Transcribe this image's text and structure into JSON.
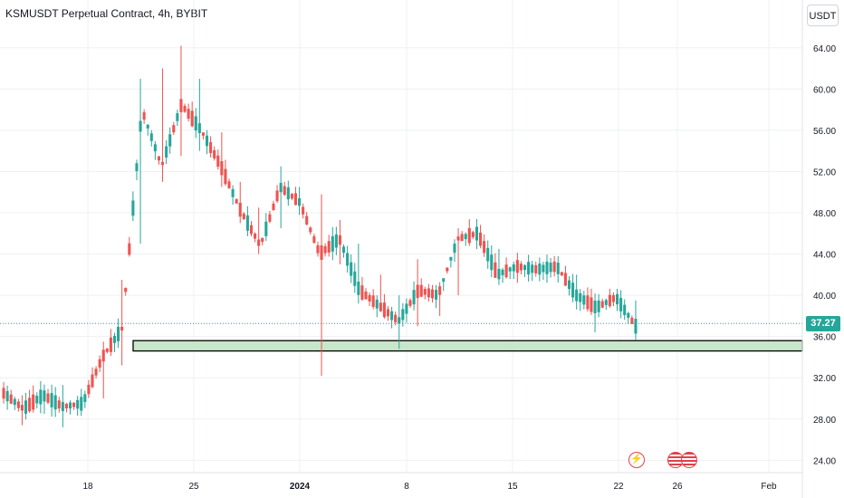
{
  "header": {
    "title": "KSMUSDT Perpetual Contract, 4h, BYBIT"
  },
  "price_scale": {
    "currency": "USDT",
    "last_price_label": "37.27"
  },
  "colors": {
    "up": "#26a69a",
    "down": "#ef5350",
    "zone_fill": "#c8e6c9",
    "zone_border": "#000000",
    "grid": "#eef0f3",
    "last_price_line": "#26a69a"
  },
  "events": [
    {
      "icon": "lightning-icon",
      "x_label": "22"
    },
    {
      "icon": "us-flag-icon",
      "x_label": "26"
    },
    {
      "icon": "us-flag-icon",
      "x_label": "26"
    }
  ],
  "chart_data": {
    "type": "candlestick",
    "y_ticks": [
      "64.00",
      "60.00",
      "56.00",
      "52.00",
      "48.00",
      "44.00",
      "40.00",
      "36.00",
      "32.00",
      "28.00",
      "24.00"
    ],
    "x_ticks": [
      "18",
      "25",
      "2024",
      "8",
      "15",
      "22",
      "26",
      "Feb"
    ],
    "last_price": 37.27,
    "ylim": [
      22.8,
      66
    ],
    "support_zone": {
      "from": 34.6,
      "to": 35.6
    },
    "grid": true,
    "series": [
      {
        "date": "2023-12-12",
        "close": 30.5,
        "low": 29.5,
        "high": 31.2
      },
      {
        "date": "2023-12-14",
        "close": 29.0,
        "low": 27.4,
        "high": 30.3
      },
      {
        "date": "2023-12-16",
        "close": 30.3,
        "low": 28.5,
        "high": 31.0
      },
      {
        "date": "2023-12-18",
        "close": 29.2,
        "low": 27.2,
        "high": 31.3
      },
      {
        "date": "2023-12-20",
        "close": 29.5,
        "low": 28.8,
        "high": 30.5
      },
      {
        "date": "2023-12-22",
        "close": 34.0,
        "low": 30.0,
        "high": 35.5
      },
      {
        "date": "2023-12-24",
        "close": 36.8,
        "low": 33.2,
        "high": 41.5
      },
      {
        "date": "2023-12-25",
        "close": 58.0,
        "low": 45.0,
        "high": 61.0
      },
      {
        "date": "2023-12-26",
        "close": 52.5,
        "low": 51.0,
        "high": 62.0
      },
      {
        "date": "2023-12-27",
        "close": 58.5,
        "low": 53.5,
        "high": 64.2
      },
      {
        "date": "2023-12-28",
        "close": 56.0,
        "low": 54.0,
        "high": 61.0
      },
      {
        "date": "2023-12-30",
        "close": 52.5,
        "low": 50.5,
        "high": 55.8
      },
      {
        "date": "2024-01-01",
        "close": 48.2,
        "low": 47.0,
        "high": 51.0
      },
      {
        "date": "2024-01-03",
        "close": 44.8,
        "low": 44.0,
        "high": 48.5
      },
      {
        "date": "2024-01-04",
        "close": 50.5,
        "low": 46.5,
        "high": 52.5
      },
      {
        "date": "2024-01-05",
        "close": 49.0,
        "low": 47.8,
        "high": 50.5
      },
      {
        "date": "2024-01-06",
        "close": 44.0,
        "low": 32.2,
        "high": 49.8
      },
      {
        "date": "2024-01-07",
        "close": 45.5,
        "low": 43.0,
        "high": 47.3
      },
      {
        "date": "2024-01-08",
        "close": 40.5,
        "low": 39.8,
        "high": 45.0
      },
      {
        "date": "2024-01-09",
        "close": 39.0,
        "low": 38.5,
        "high": 42.0
      },
      {
        "date": "2024-01-10",
        "close": 37.5,
        "low": 34.8,
        "high": 40.0
      },
      {
        "date": "2024-01-11",
        "close": 40.5,
        "low": 37.0,
        "high": 43.5
      },
      {
        "date": "2024-01-12",
        "close": 40.0,
        "low": 38.0,
        "high": 41.2
      },
      {
        "date": "2024-01-13",
        "close": 45.5,
        "low": 40.0,
        "high": 46.5
      },
      {
        "date": "2024-01-14",
        "close": 46.0,
        "low": 45.2,
        "high": 47.2
      },
      {
        "date": "2024-01-15",
        "close": 42.0,
        "low": 41.0,
        "high": 44.5
      },
      {
        "date": "2024-01-16",
        "close": 42.8,
        "low": 41.2,
        "high": 43.8
      },
      {
        "date": "2024-01-17",
        "close": 42.5,
        "low": 41.8,
        "high": 43.2
      },
      {
        "date": "2024-01-19",
        "close": 42.8,
        "low": 41.9,
        "high": 43.5
      },
      {
        "date": "2024-01-20",
        "close": 40.0,
        "low": 39.0,
        "high": 42.0
      },
      {
        "date": "2024-01-21",
        "close": 38.8,
        "low": 36.4,
        "high": 40.1
      },
      {
        "date": "2024-01-22",
        "close": 39.8,
        "low": 38.8,
        "high": 40.5
      },
      {
        "date": "2024-01-23",
        "close": 37.0,
        "low": 36.4,
        "high": 39.5
      }
    ]
  }
}
